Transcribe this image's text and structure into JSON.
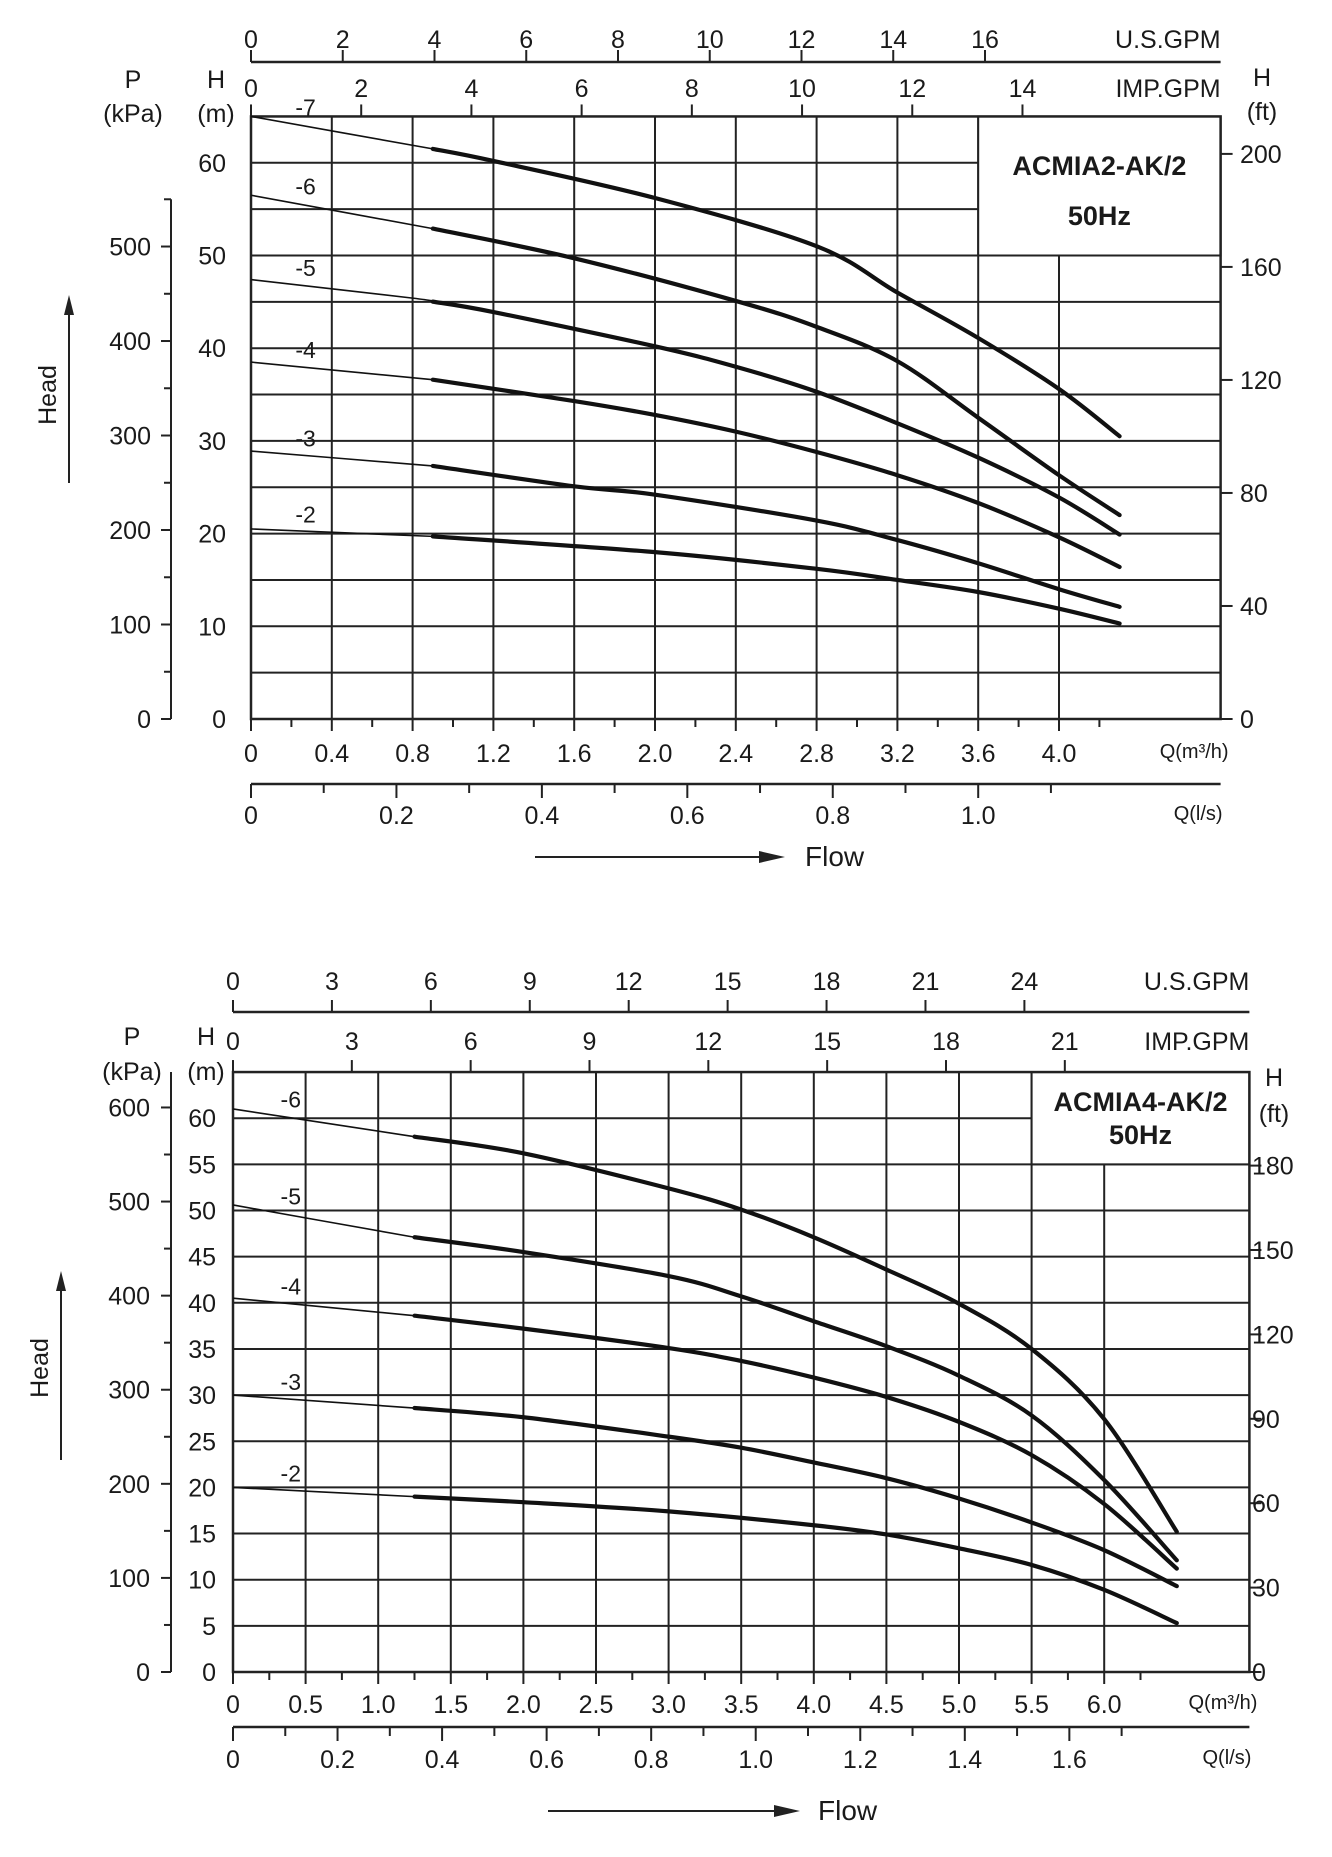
{
  "chart_data": [
    {
      "type": "line",
      "title": "ACMIA2-AK/2",
      "subtitle": "50Hz",
      "xlabel": "Q(m³/h)",
      "xlabel_secondary": "Q(l/s)",
      "top_axis_1_label": "U.S.GPM",
      "top_axis_2_label": "IMP.GPM",
      "ylabel_left_1": {
        "symbol": "P",
        "unit": "(kPa)"
      },
      "ylabel_left_2": {
        "symbol": "H",
        "unit": "(m)"
      },
      "ylabel_right": {
        "symbol": "H",
        "unit": "(ft)"
      },
      "head_label": "Head",
      "flow_label": "Flow",
      "xlim": [
        0,
        4.8
      ],
      "ylim": [
        0,
        65
      ],
      "grid": true,
      "recommended_range": [
        0.9,
        4.3
      ],
      "ticks": {
        "q_m3h": [
          "0",
          "0.4",
          "0.8",
          "1.2",
          "1.6",
          "2.0",
          "2.4",
          "2.8",
          "3.2",
          "3.6",
          "4.0"
        ],
        "q_ls": [
          "0",
          "0.2",
          "0.4",
          "0.6",
          "0.8",
          "1.0"
        ],
        "us_gpm": [
          "0",
          "2",
          "4",
          "6",
          "8",
          "10",
          "12",
          "14",
          "16"
        ],
        "imp_gpm": [
          "0",
          "2",
          "4",
          "6",
          "8",
          "10",
          "12",
          "14"
        ],
        "h_m": [
          "0",
          "10",
          "20",
          "30",
          "40",
          "50",
          "60"
        ],
        "p_kpa": [
          "0",
          "100",
          "200",
          "300",
          "400",
          "500"
        ],
        "h_ft": [
          "0",
          "40",
          "80",
          "120",
          "160",
          "200"
        ]
      },
      "series": [
        {
          "name": "-7",
          "points": [
            [
              0,
              65
            ],
            [
              0.9,
              61.5
            ],
            [
              1.2,
              60.2
            ],
            [
              2.0,
              56.2
            ],
            [
              2.8,
              51
            ],
            [
              3.2,
              46
            ],
            [
              3.6,
              41.1
            ],
            [
              4.0,
              35.6
            ],
            [
              4.3,
              30.5
            ]
          ]
        },
        {
          "name": "-6",
          "points": [
            [
              0,
              56.5
            ],
            [
              0.9,
              52.9
            ],
            [
              1.6,
              49.7
            ],
            [
              2.4,
              45.1
            ],
            [
              2.8,
              42.3
            ],
            [
              3.2,
              38.6
            ],
            [
              3.6,
              32.5
            ],
            [
              4.0,
              26.3
            ],
            [
              4.3,
              22
            ]
          ]
        },
        {
          "name": "-5",
          "points": [
            [
              0,
              47.4
            ],
            [
              0.8,
              45.4
            ],
            [
              1.2,
              43.9
            ],
            [
              2.0,
              40.2
            ],
            [
              2.4,
              38
            ],
            [
              2.8,
              35.3
            ],
            [
              3.2,
              31.9
            ],
            [
              3.6,
              28.2
            ],
            [
              4.0,
              23.9
            ],
            [
              4.3,
              19.9
            ]
          ]
        },
        {
          "name": "-4",
          "points": [
            [
              0,
              38.5
            ],
            [
              0.9,
              36.6
            ],
            [
              1.6,
              34.3
            ],
            [
              2.0,
              32.8
            ],
            [
              2.4,
              31
            ],
            [
              2.8,
              28.8
            ],
            [
              3.2,
              26.3
            ],
            [
              3.6,
              23.3
            ],
            [
              4.0,
              19.6
            ],
            [
              4.3,
              16.4
            ]
          ]
        },
        {
          "name": "-3",
          "points": [
            [
              0,
              28.9
            ],
            [
              0.9,
              27.3
            ],
            [
              1.6,
              25.1
            ],
            [
              2.0,
              24.2
            ],
            [
              2.8,
              21.4
            ],
            [
              3.2,
              19.3
            ],
            [
              3.6,
              16.8
            ],
            [
              4.0,
              14
            ],
            [
              4.3,
              12.1
            ]
          ]
        },
        {
          "name": "-2",
          "points": [
            [
              0,
              20.5
            ],
            [
              0.9,
              19.7
            ],
            [
              2.0,
              18
            ],
            [
              2.8,
              16.2
            ],
            [
              3.2,
              15
            ],
            [
              3.6,
              13.7
            ],
            [
              4.0,
              11.9
            ],
            [
              4.3,
              10.3
            ]
          ]
        }
      ]
    },
    {
      "type": "line",
      "title": "ACMIA4-AK/2",
      "subtitle": "50Hz",
      "xlabel": "Q(m³/h)",
      "xlabel_secondary": "Q(l/s)",
      "top_axis_1_label": "U.S.GPM",
      "top_axis_2_label": "IMP.GPM",
      "ylabel_left_1": {
        "symbol": "P",
        "unit": "(kPa)"
      },
      "ylabel_left_2": {
        "symbol": "H",
        "unit": "(m)"
      },
      "ylabel_right": {
        "symbol": "H",
        "unit": "(ft)"
      },
      "head_label": "Head",
      "flow_label": "Flow",
      "xlim": [
        0,
        7.0
      ],
      "ylim": [
        0,
        65
      ],
      "grid": true,
      "recommended_range": [
        1.25,
        6.5
      ],
      "ticks": {
        "q_m3h": [
          "0",
          "0.5",
          "1.0",
          "1.5",
          "2.0",
          "2.5",
          "3.0",
          "3.5",
          "4.0",
          "4.5",
          "5.0",
          "5.5",
          "6.0"
        ],
        "q_ls": [
          "0",
          "0.2",
          "0.4",
          "0.6",
          "0.8",
          "1.0",
          "1.2",
          "1.4",
          "1.6"
        ],
        "us_gpm": [
          "0",
          "3",
          "6",
          "9",
          "12",
          "15",
          "18",
          "21",
          "24"
        ],
        "imp_gpm": [
          "0",
          "3",
          "6",
          "9",
          "12",
          "15",
          "18",
          "21"
        ],
        "h_m": [
          "0",
          "5",
          "10",
          "15",
          "20",
          "25",
          "30",
          "35",
          "40",
          "45",
          "50",
          "55",
          "60"
        ],
        "p_kpa": [
          "0",
          "100",
          "200",
          "300",
          "400",
          "500",
          "600"
        ],
        "h_ft": [
          "0",
          "30",
          "60",
          "90",
          "120",
          "150",
          "180"
        ]
      },
      "series": [
        {
          "name": "-6",
          "points": [
            [
              0,
              61
            ],
            [
              1.25,
              58
            ],
            [
              2.0,
              56.2
            ],
            [
              3.0,
              52.4
            ],
            [
              3.5,
              50.1
            ],
            [
              4.0,
              47.1
            ],
            [
              4.5,
              43.6
            ],
            [
              5.0,
              39.9
            ],
            [
              5.5,
              35
            ],
            [
              6.0,
              27.4
            ],
            [
              6.5,
              15.2
            ]
          ]
        },
        {
          "name": "-5",
          "points": [
            [
              0,
              50.6
            ],
            [
              1.25,
              47.1
            ],
            [
              2.0,
              45.5
            ],
            [
              3.0,
              42.9
            ],
            [
              3.5,
              40.7
            ],
            [
              4.0,
              38
            ],
            [
              4.5,
              35.3
            ],
            [
              5.0,
              32.1
            ],
            [
              5.5,
              27.8
            ],
            [
              6.0,
              20.8
            ],
            [
              6.5,
              12.1
            ]
          ]
        },
        {
          "name": "-4",
          "points": [
            [
              0,
              40.5
            ],
            [
              1.25,
              38.6
            ],
            [
              2.0,
              37.2
            ],
            [
              3.0,
              35.1
            ],
            [
              3.5,
              33.7
            ],
            [
              4.0,
              31.9
            ],
            [
              4.5,
              29.8
            ],
            [
              5.0,
              27.1
            ],
            [
              5.5,
              23.5
            ],
            [
              6.0,
              18.2
            ],
            [
              6.5,
              11.2
            ]
          ]
        },
        {
          "name": "-3",
          "points": [
            [
              0,
              30
            ],
            [
              1.25,
              28.6
            ],
            [
              2.0,
              27.6
            ],
            [
              3.0,
              25.5
            ],
            [
              3.5,
              24.3
            ],
            [
              4.0,
              22.7
            ],
            [
              4.5,
              21
            ],
            [
              5.0,
              18.8
            ],
            [
              5.5,
              16.2
            ],
            [
              6.0,
              13.2
            ],
            [
              6.5,
              9.3
            ]
          ]
        },
        {
          "name": "-2",
          "points": [
            [
              0,
              20
            ],
            [
              1.25,
              19
            ],
            [
              2.0,
              18.4
            ],
            [
              3.0,
              17.4
            ],
            [
              4.0,
              15.9
            ],
            [
              4.5,
              14.9
            ],
            [
              5.0,
              13.4
            ],
            [
              5.5,
              11.6
            ],
            [
              6.0,
              8.9
            ],
            [
              6.5,
              5.3
            ]
          ]
        }
      ]
    }
  ]
}
